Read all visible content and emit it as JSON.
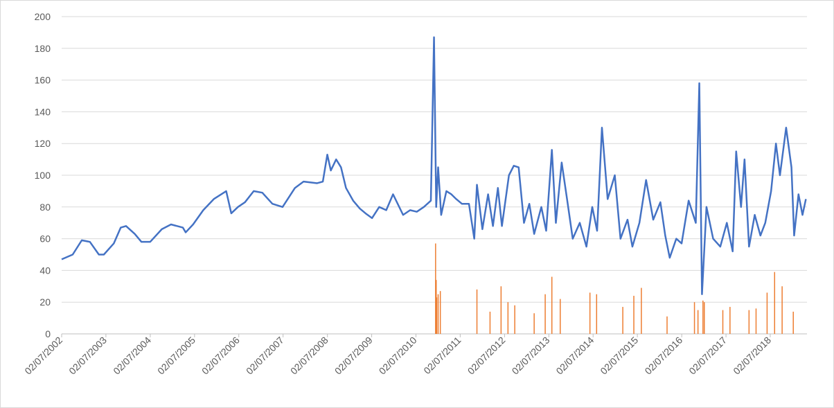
{
  "chart_data": {
    "type": "line",
    "xlim": [
      "2002-07-02",
      "2019-05-01"
    ],
    "xticks": [
      {
        "value": "2002-07-02",
        "label": "02/07/2002"
      },
      {
        "value": "2003-07-02",
        "label": "02/07/2003"
      },
      {
        "value": "2004-07-02",
        "label": "02/07/2004"
      },
      {
        "value": "2005-07-02",
        "label": "02/07/2005"
      },
      {
        "value": "2006-07-02",
        "label": "02/07/2006"
      },
      {
        "value": "2007-07-02",
        "label": "02/07/2007"
      },
      {
        "value": "2008-07-02",
        "label": "02/07/2008"
      },
      {
        "value": "2009-07-02",
        "label": "02/07/2009"
      },
      {
        "value": "2010-07-02",
        "label": "02/07/2010"
      },
      {
        "value": "2011-07-02",
        "label": "02/07/2011"
      },
      {
        "value": "2012-07-02",
        "label": "02/07/2012"
      },
      {
        "value": "2013-07-02",
        "label": "02/07/2013"
      },
      {
        "value": "2014-07-02",
        "label": "02/07/2014"
      },
      {
        "value": "2015-07-02",
        "label": "02/07/2015"
      },
      {
        "value": "2016-07-02",
        "label": "02/07/2016"
      },
      {
        "value": "2017-07-02",
        "label": "02/07/2017"
      },
      {
        "value": "2018-07-02",
        "label": "02/07/2018"
      }
    ],
    "ylim": [
      0,
      200
    ],
    "yticks": [
      0,
      20,
      40,
      60,
      80,
      100,
      120,
      140,
      160,
      180,
      200
    ],
    "grid": true,
    "series": [
      {
        "type": "line",
        "color": "#4472c4",
        "x": [
          "2002-07-02",
          "2002-10-01",
          "2002-12-15",
          "2003-02-20",
          "2003-05-05",
          "2003-06-15",
          "2003-09-05",
          "2003-11-01",
          "2003-12-15",
          "2004-02-25",
          "2004-04-20",
          "2004-07-01",
          "2004-10-05",
          "2004-12-20",
          "2005-03-28",
          "2005-04-20",
          "2005-06-20",
          "2005-09-12",
          "2005-12-08",
          "2006-03-20",
          "2006-05-01",
          "2006-06-25",
          "2006-08-22",
          "2006-11-02",
          "2007-01-12",
          "2007-04-05",
          "2007-06-28",
          "2007-10-08",
          "2007-12-18",
          "2008-04-08",
          "2008-05-25",
          "2008-07-01",
          "2008-07-30",
          "2008-09-12",
          "2008-10-22",
          "2008-12-02",
          "2009-01-30",
          "2009-03-26",
          "2009-05-12",
          "2009-07-05",
          "2009-09-02",
          "2009-10-30",
          "2009-12-25",
          "2010-03-18",
          "2010-05-15",
          "2010-07-09",
          "2010-09-05",
          "2010-11-02",
          "2010-11-28",
          "2010-12-16",
          "2011-01-01",
          "2011-01-26",
          "2011-03-10",
          "2011-04-20",
          "2011-05-30",
          "2011-07-16",
          "2011-09-12",
          "2011-10-26",
          "2011-11-17",
          "2012-01-01",
          "2012-02-17",
          "2012-03-28",
          "2012-05-08",
          "2012-06-10",
          "2012-08-07",
          "2012-09-16",
          "2012-10-26",
          "2012-12-09",
          "2013-01-22",
          "2013-03-03",
          "2013-05-01",
          "2013-06-10",
          "2013-07-27",
          "2013-08-29",
          "2013-10-16",
          "2013-11-29",
          "2014-01-15",
          "2014-03-14",
          "2014-05-08",
          "2014-06-25",
          "2014-08-04",
          "2014-09-13",
          "2014-10-30",
          "2014-12-28",
          "2015-02-13",
          "2015-04-12",
          "2015-05-22",
          "2015-07-19",
          "2015-09-12",
          "2015-11-10",
          "2016-01-08",
          "2016-02-17",
          "2016-03-25",
          "2016-05-18",
          "2016-07-01",
          "2016-08-28",
          "2016-10-26",
          "2016-11-24",
          "2016-12-16",
          "2017-01-22",
          "2017-03-18",
          "2017-05-16",
          "2017-07-09",
          "2017-08-26",
          "2017-09-24",
          "2017-11-03",
          "2017-12-02",
          "2018-01-08",
          "2018-02-24",
          "2018-04-12",
          "2018-05-22",
          "2018-07-09",
          "2018-08-18",
          "2018-09-20",
          "2018-11-10",
          "2018-12-24",
          "2019-01-15",
          "2019-02-20",
          "2019-03-25",
          "2019-04-22"
        ],
        "values": [
          47,
          50,
          59,
          58,
          50,
          50,
          57,
          67,
          68,
          63,
          58,
          58,
          66,
          69,
          67,
          64,
          69,
          78,
          85,
          90,
          76,
          80,
          83,
          90,
          89,
          82,
          80,
          92,
          96,
          95,
          96,
          113,
          103,
          110,
          105,
          92,
          84,
          79,
          76,
          73,
          80,
          78,
          88,
          75,
          78,
          77,
          80,
          84,
          187,
          80,
          105,
          75,
          90,
          88,
          85,
          82,
          82,
          60,
          94,
          66,
          88,
          68,
          92,
          68,
          100,
          106,
          105,
          70,
          82,
          63,
          80,
          65,
          116,
          70,
          108,
          85,
          60,
          70,
          55,
          80,
          65,
          130,
          85,
          100,
          60,
          72,
          55,
          70,
          97,
          72,
          83,
          62,
          48,
          60,
          57,
          84,
          70,
          158,
          25,
          80,
          60,
          55,
          70,
          52,
          115,
          80,
          110,
          55,
          75,
          62,
          70,
          90,
          120,
          100,
          130,
          105,
          62,
          88,
          75,
          85
        ]
      },
      {
        "type": "bar",
        "color": "#ed7d31",
        "x": [
          "2010-12-11",
          "2010-12-16",
          "2010-12-20",
          "2011-01-01",
          "2011-01-19",
          "2011-11-17",
          "2012-03-04",
          "2012-06-03",
          "2012-07-30",
          "2012-09-24",
          "2013-03-03",
          "2013-06-02",
          "2013-07-27",
          "2013-10-04",
          "2014-06-06",
          "2014-07-31",
          "2015-03-04",
          "2015-06-03",
          "2015-08-04",
          "2016-03-03",
          "2016-10-15",
          "2016-11-13",
          "2016-12-24",
          "2017-01-04",
          "2017-06-06",
          "2017-08-04",
          "2018-01-08",
          "2018-03-07",
          "2018-06-06",
          "2018-08-07",
          "2018-10-08",
          "2019-01-08"
        ],
        "values": [
          57,
          34,
          23,
          25,
          27,
          28,
          14,
          30,
          20,
          18,
          13,
          25,
          36,
          22,
          26,
          25,
          17,
          24,
          29,
          11,
          20,
          15,
          21,
          20,
          15,
          17,
          15,
          16,
          26,
          39,
          30,
          14
        ]
      }
    ]
  }
}
